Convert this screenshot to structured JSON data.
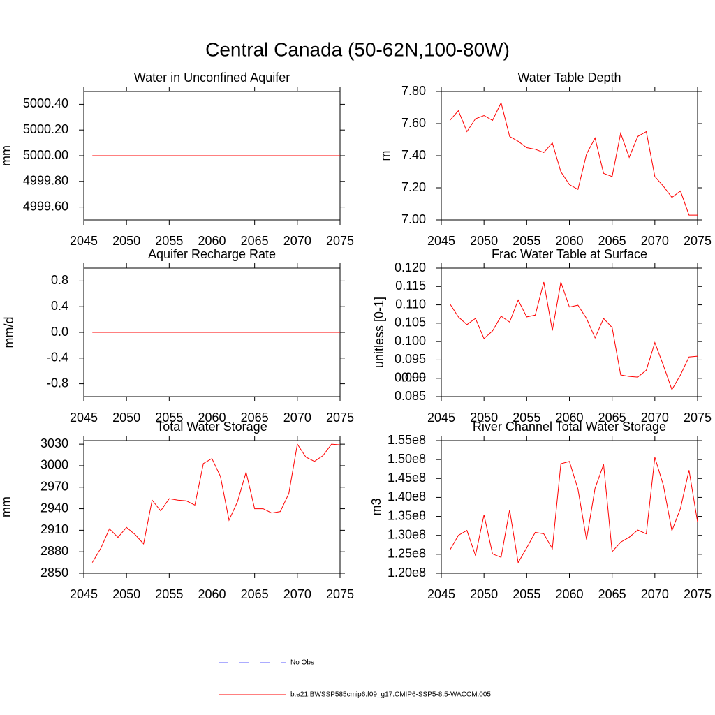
{
  "title": "Central Canada (50-62N,100-80W)",
  "legend": [
    {
      "name": "No Obs",
      "color": "#5a5aff",
      "dash": true
    },
    {
      "name": "b.e21.BWSSP585cmip6.f09_g17.CMIP6-SSP5-8.5-WACCM.005",
      "color": "#ff0000",
      "dash": false
    }
  ],
  "chart_data": [
    {
      "type": "line",
      "title": "Water in Unconfined Aquifer",
      "ylabel": "mm",
      "color": "#ff0000",
      "x": [
        2046,
        2047,
        2048,
        2049,
        2050,
        2051,
        2052,
        2053,
        2054,
        2055,
        2056,
        2057,
        2058,
        2059,
        2060,
        2061,
        2062,
        2063,
        2064,
        2065,
        2066,
        2067,
        2068,
        2069,
        2070,
        2071,
        2072,
        2073,
        2074,
        2075
      ],
      "values": [
        5000,
        5000,
        5000,
        5000,
        5000,
        5000,
        5000,
        5000,
        5000,
        5000,
        5000,
        5000,
        5000,
        5000,
        5000,
        5000,
        5000,
        5000,
        5000,
        5000,
        5000,
        5000,
        5000,
        5000,
        5000,
        5000,
        5000,
        5000,
        5000,
        5000
      ],
      "xlim": [
        2045,
        2075
      ],
      "xticks": [
        2045,
        2050,
        2055,
        2060,
        2065,
        2070,
        2075
      ],
      "ylim": [
        4999.5,
        5000.5
      ],
      "yticks": [
        {
          "value": 4999.6,
          "label": "4999.60"
        },
        {
          "value": 4999.8,
          "label": "4999.80"
        },
        {
          "value": 5000,
          "label": "5000.00"
        },
        {
          "value": 5000.2,
          "label": "5000.20"
        },
        {
          "value": 5000.4,
          "label": "5000.40"
        }
      ]
    },
    {
      "type": "line",
      "title": "Water Table Depth",
      "ylabel": "m",
      "color": "#ff0000",
      "x": [
        2046,
        2047,
        2048,
        2049,
        2050,
        2051,
        2052,
        2053,
        2054,
        2055,
        2056,
        2057,
        2058,
        2059,
        2060,
        2061,
        2062,
        2063,
        2064,
        2065,
        2066,
        2067,
        2068,
        2069,
        2070,
        2071,
        2072,
        2073,
        2074,
        2075
      ],
      "values": [
        7.62,
        7.68,
        7.55,
        7.63,
        7.65,
        7.62,
        7.73,
        7.52,
        7.49,
        7.45,
        7.44,
        7.42,
        7.48,
        7.3,
        7.22,
        7.19,
        7.41,
        7.51,
        7.29,
        7.27,
        7.54,
        7.39,
        7.52,
        7.55,
        7.27,
        7.21,
        7.14,
        7.18,
        7.03,
        7.03
      ],
      "xlim": [
        2045,
        2075
      ],
      "xticks": [
        2045,
        2050,
        2055,
        2060,
        2065,
        2070,
        2075
      ],
      "ylim": [
        7.0,
        7.8
      ],
      "yticks": [
        {
          "value": 7.0,
          "label": "7.00"
        },
        {
          "value": 7.2,
          "label": "7.20"
        },
        {
          "value": 7.4,
          "label": "7.40"
        },
        {
          "value": 7.6,
          "label": "7.60"
        },
        {
          "value": 7.8,
          "label": "7.80"
        }
      ]
    },
    {
      "type": "line",
      "title": "Aquifer Recharge Rate",
      "ylabel": "mm/d",
      "color": "#ff0000",
      "x": [
        2046,
        2047,
        2048,
        2049,
        2050,
        2051,
        2052,
        2053,
        2054,
        2055,
        2056,
        2057,
        2058,
        2059,
        2060,
        2061,
        2062,
        2063,
        2064,
        2065,
        2066,
        2067,
        2068,
        2069,
        2070,
        2071,
        2072,
        2073,
        2074,
        2075
      ],
      "values": [
        0,
        0,
        0,
        0,
        0,
        0,
        0,
        0,
        0,
        0,
        0,
        0,
        0,
        0,
        0,
        0,
        0,
        0,
        0,
        0,
        0,
        0,
        0,
        0,
        0,
        0,
        0,
        0,
        0,
        0
      ],
      "xlim": [
        2045,
        2075
      ],
      "xticks": [
        2045,
        2050,
        2055,
        2060,
        2065,
        2070,
        2075
      ],
      "ylim": [
        -1,
        1
      ],
      "yticks": [
        {
          "value": -0.8,
          "label": "-0.8"
        },
        {
          "value": -0.4,
          "label": "-0.4"
        },
        {
          "value": 0,
          "label": "0.0"
        },
        {
          "value": 0.4,
          "label": "0.4"
        },
        {
          "value": 0.8,
          "label": "0.8"
        }
      ]
    },
    {
      "type": "line",
      "title": "Frac Water Table at Surface",
      "ylabel": "unitless [0-1]",
      "color": "#ff0000",
      "x": [
        2046,
        2047,
        2048,
        2049,
        2050,
        2051,
        2052,
        2053,
        2054,
        2055,
        2056,
        2057,
        2058,
        2059,
        2060,
        2061,
        2062,
        2063,
        2064,
        2065,
        2066,
        2067,
        2068,
        2069,
        2070,
        2071,
        2072,
        2073,
        2074,
        2075
      ],
      "values": [
        0.1103,
        0.1067,
        0.1046,
        0.1063,
        0.1008,
        0.1029,
        0.1069,
        0.1053,
        0.1113,
        0.1067,
        0.1072,
        0.1162,
        0.103,
        0.1162,
        0.1094,
        0.1099,
        0.1063,
        0.101,
        0.1063,
        0.1038,
        0.0909,
        0.0905,
        0.0903,
        0.0922,
        0.0997,
        0.0935,
        0.0869,
        0.0909,
        0.0958,
        0.096
      ],
      "xlim": [
        2045,
        2075
      ],
      "xticks": [
        2045,
        2050,
        2055,
        2060,
        2065,
        2070,
        2075
      ],
      "ylim": [
        0.085,
        0.12
      ],
      "yticks": [
        0.085,
        0.09,
        {
          "value": 0.09,
          "label": "0.090"
        },
        0.095,
        {
          "value": 0.1,
          "label": "0.100"
        },
        0.105,
        {
          "value": 0.11,
          "label": "0.110"
        },
        0.115,
        {
          "value": 0.12,
          "label": "0.120"
        }
      ]
    },
    {
      "type": "line",
      "title": "Total Water Storage",
      "ylabel": "mm",
      "color": "#ff0000",
      "x": [
        2046,
        2047,
        2048,
        2049,
        2050,
        2051,
        2052,
        2053,
        2054,
        2055,
        2056,
        2057,
        2058,
        2059,
        2060,
        2061,
        2062,
        2063,
        2064,
        2065,
        2066,
        2067,
        2068,
        2069,
        2070,
        2071,
        2072,
        2073,
        2074,
        2075
      ],
      "values": [
        2865,
        2885,
        2912,
        2900,
        2914,
        2904,
        2891,
        2952,
        2937,
        2954,
        2952,
        2951,
        2945,
        3003,
        3010,
        2985,
        2924,
        2950,
        2991,
        2940,
        2940,
        2934,
        2936,
        2961,
        3030,
        3012,
        3006,
        3014,
        3030,
        3029
      ],
      "xlim": [
        2045,
        2075
      ],
      "xticks": [
        2045,
        2050,
        2055,
        2060,
        2065,
        2070,
        2075
      ],
      "ylim": [
        2850,
        3035
      ],
      "yticks": [
        2850,
        2880,
        2910,
        2940,
        2970,
        3000,
        3030
      ]
    },
    {
      "type": "line",
      "title": "River Channel Total Water Storage",
      "ylabel": "m3",
      "color": "#ff0000",
      "x": [
        2046,
        2047,
        2048,
        2049,
        2050,
        2051,
        2052,
        2053,
        2054,
        2055,
        2056,
        2057,
        2058,
        2059,
        2060,
        2061,
        2062,
        2063,
        2064,
        2065,
        2066,
        2067,
        2068,
        2069,
        2070,
        2071,
        2072,
        2073,
        2074,
        2075
      ],
      "values": [
        126100000,
        130000000,
        131300000,
        124700000,
        135400000,
        125100000,
        124200000,
        136700000,
        122800000,
        126700000,
        130800000,
        130400000,
        126500000,
        148900000,
        149500000,
        142200000,
        128900000,
        142400000,
        148700000,
        125700000,
        128200000,
        129500000,
        131400000,
        130400000,
        150600000,
        143200000,
        131200000,
        137100000,
        147200000,
        133500000
      ],
      "xlim": [
        2045,
        2075
      ],
      "xticks": [
        2045,
        2050,
        2055,
        2060,
        2065,
        2070,
        2075
      ],
      "ylim": [
        120000000,
        155000000
      ],
      "yticks": [
        {
          "value": 120000000,
          "label": "1.20e8"
        },
        {
          "value": 125000000,
          "label": "1.25e8"
        },
        {
          "value": 130000000,
          "label": "1.30e8"
        },
        {
          "value": 135000000,
          "label": "1.35e8"
        },
        {
          "value": 140000000,
          "label": "1.40e8"
        },
        {
          "value": 145000000,
          "label": "1.45e8"
        },
        {
          "value": 150000000,
          "label": "1.50e8"
        },
        {
          "value": 155000000,
          "label": "1.55e8"
        }
      ]
    }
  ]
}
